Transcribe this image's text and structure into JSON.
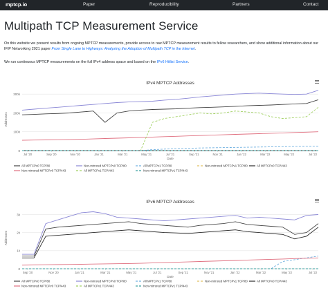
{
  "navbar": {
    "brand": "mptcp.io",
    "links": [
      "Paper",
      "Reproducibility",
      "Partners",
      "Contact"
    ]
  },
  "page": {
    "title": "Multipath TCP Measurement Service",
    "intro_part1": "On this website we present results from ongoing MPTCP measurements, provide access to raw MPTCP measurement results to fellow researchers, and show additional information about our IFIP Networking 2021 paper ",
    "intro_link": "From Single Lane to Highways: Analyzing the Adoption of Multipath TCP in the Internet",
    "intro_end": ".",
    "hitlist_part1": "We run continuous MPTCP measurements on the full IPv4 address space and based on the ",
    "hitlist_link": "IPv6 Hitlist Service",
    "hitlist_end": "."
  },
  "colors": {
    "mptcpv0_tcp80": "#444444",
    "nonmirrored_v0_tcp80": "#8a87d6",
    "mptcpv1_tcp80": "#6fb0e0",
    "nonmirrored_v1_tcp80": "#e0c060",
    "mptcpv0_tcp443": "#2a2a2a",
    "nonmirrored_v0_tcp443": "#e07080",
    "mptcpv0_tcp443_b": "#a0d060",
    "mptcpv1_tcp443": "#3aa0a0",
    "nonmirrored_v1_tcp443": "#d04060"
  },
  "chart_data": [
    {
      "type": "line",
      "title": "IPv4 MPTCP Addresses",
      "xlabel": "Date",
      "ylabel": "Addresses",
      "x_ticks": [
        "Jul '20",
        "Sep '20",
        "Nov '20",
        "Jan '21",
        "Mar '21",
        "May '21",
        "Jul '21",
        "Sep '21",
        "Nov '21",
        "Jan '22",
        "Mar '22",
        "May '22",
        "Jul '22"
      ],
      "y_ticks": [
        "0",
        "100k",
        "200k",
        "300k"
      ],
      "ylim": [
        0,
        330000
      ],
      "grid": true,
      "legend": "bottom",
      "x": [
        "2020-07",
        "2020-08",
        "2020-09",
        "2020-10",
        "2020-11",
        "2020-12",
        "2021-01",
        "2021-02",
        "2021-03",
        "2021-04",
        "2021-05",
        "2021-06",
        "2021-07",
        "2021-08",
        "2021-09",
        "2021-10",
        "2021-11",
        "2021-12",
        "2022-01",
        "2022-02",
        "2022-03",
        "2022-04",
        "2022-05",
        "2022-06",
        "2022-07",
        "2022-08"
      ],
      "series": [
        {
          "name": "All MPTCPv0 TCP/80",
          "color": "#444444",
          "values": [
            190000,
            192000,
            195000,
            197000,
            200000,
            205000,
            210000,
            150000,
            200000,
            210000,
            215000,
            218000,
            220000,
            222000,
            225000,
            228000,
            230000,
            232000,
            235000,
            238000,
            240000,
            242000,
            245000,
            248000,
            250000,
            270000
          ]
        },
        {
          "name": "Non-mirrored MPTCPv0 TCP/80",
          "color": "#8a87d6",
          "values": [
            215000,
            220000,
            225000,
            230000,
            235000,
            240000,
            245000,
            250000,
            255000,
            258000,
            260000,
            262000,
            268000,
            272000,
            278000,
            285000,
            290000,
            295000,
            300000,
            303000,
            305000,
            302000,
            300000,
            298000,
            300000,
            320000
          ]
        },
        {
          "name": "All MPTCPv1 TCP/80",
          "color": "#6fb0e0",
          "values": [
            0,
            0,
            0,
            0,
            0,
            0,
            0,
            0,
            0,
            0,
            0,
            5000,
            8000,
            10000,
            12000,
            14000,
            15000,
            16000,
            17000,
            18000,
            19000,
            20000,
            21000,
            22000,
            23000,
            24000
          ]
        },
        {
          "name": "Non-mirrored MPTCPv1 TCP/80",
          "color": "#e0c060",
          "values": [
            0,
            0,
            0,
            0,
            0,
            0,
            0,
            0,
            0,
            0,
            0,
            0,
            0,
            0,
            0,
            0,
            0,
            0,
            0,
            0,
            0,
            0,
            0,
            0,
            0,
            0
          ]
        },
        {
          "name": "All MPTCPv0 TCP/443",
          "color": "#2a2a2a",
          "values": [
            0,
            0,
            0,
            0,
            0,
            0,
            0,
            0,
            0,
            0,
            0,
            0,
            0,
            0,
            0,
            0,
            0,
            0,
            0,
            0,
            0,
            0,
            0,
            0,
            0,
            0
          ]
        },
        {
          "name": "Non-mirrored MPTCPv0 TCP/443",
          "color": "#e07080",
          "values": [
            55000,
            56000,
            57000,
            58000,
            59000,
            60000,
            62000,
            64000,
            66000,
            68000,
            70000,
            72000,
            74000,
            76000,
            78000,
            80000,
            82000,
            84000,
            86000,
            88000,
            90000,
            92000,
            94000,
            96000,
            98000,
            100000
          ]
        },
        {
          "name": "All MPTCPv1 TCP/443",
          "color": "#a0d060",
          "values": [
            0,
            0,
            0,
            0,
            0,
            0,
            0,
            0,
            0,
            0,
            0,
            150000,
            170000,
            180000,
            190000,
            200000,
            195000,
            200000,
            210000,
            205000,
            200000,
            180000,
            170000,
            175000,
            180000,
            230000
          ]
        },
        {
          "name": "Non-mirrored MPTCPv1 TCP/443",
          "color": "#3aa0a0",
          "values": [
            0,
            0,
            0,
            0,
            0,
            0,
            0,
            0,
            0,
            0,
            0,
            0,
            0,
            0,
            0,
            0,
            0,
            0,
            0,
            0,
            0,
            0,
            0,
            0,
            0,
            0
          ]
        }
      ]
    },
    {
      "type": "line",
      "title": "IPv6 MPTCP Addresses",
      "xlabel": "Date",
      "ylabel": "Addresses",
      "x_ticks": [
        "Sep '20",
        "Nov '20",
        "Jan '21",
        "Mar '21",
        "May '21",
        "Jul '21",
        "Sep '21",
        "Nov '21",
        "Jan '22",
        "Mar '22",
        "May '22",
        "Jul '22"
      ],
      "y_ticks": [
        "0",
        "1k",
        "2k",
        "3k"
      ],
      "ylim": [
        0,
        3400
      ],
      "grid": true,
      "legend": "bottom",
      "x": [
        "2020-07",
        "2020-08",
        "2020-09",
        "2020-10",
        "2020-11",
        "2020-12",
        "2021-01",
        "2021-02",
        "2021-03",
        "2021-04",
        "2021-05",
        "2021-06",
        "2021-07",
        "2021-08",
        "2021-09",
        "2021-10",
        "2021-11",
        "2021-12",
        "2022-01",
        "2022-02",
        "2022-03",
        "2022-04",
        "2022-05",
        "2022-06",
        "2022-07",
        "2022-08"
      ],
      "series": [
        {
          "name": "All MPTCPv0 TCP/80",
          "color": "#444444",
          "values": [
            700,
            700,
            2200,
            2300,
            2350,
            2400,
            2450,
            2500,
            2550,
            2600,
            2500,
            2450,
            2400,
            2350,
            2300,
            2400,
            2450,
            2500,
            2600,
            2450,
            2400,
            2350,
            2300,
            1900,
            2000,
            2500
          ]
        },
        {
          "name": "Non-mirrored MPTCPv0 TCP/80",
          "color": "#8a87d6",
          "values": [
            800,
            800,
            2500,
            2700,
            2900,
            3100,
            3150,
            3050,
            2850,
            2800,
            2750,
            2700,
            2650,
            2700,
            2750,
            2800,
            2850,
            2900,
            2950,
            2800,
            2850,
            2800,
            2750,
            2700,
            2950,
            3000
          ]
        },
        {
          "name": "All MPTCPv1 TCP/80",
          "color": "#6fb0e0",
          "values": [
            0,
            0,
            0,
            0,
            0,
            0,
            0,
            0,
            0,
            0,
            0,
            0,
            0,
            0,
            0,
            0,
            0,
            0,
            0,
            0,
            0,
            0,
            400,
            500,
            600,
            700
          ]
        },
        {
          "name": "Non-mirrored MPTCPv1 TCP/80",
          "color": "#e0c060",
          "values": [
            0,
            0,
            0,
            0,
            0,
            0,
            0,
            0,
            0,
            0,
            0,
            0,
            0,
            0,
            0,
            0,
            0,
            0,
            0,
            0,
            0,
            0,
            0,
            0,
            0,
            0
          ]
        },
        {
          "name": "All MPTCPv0 TCP/443",
          "color": "#2a2a2a",
          "values": [
            600,
            600,
            1800,
            1850,
            1900,
            1950,
            2000,
            2050,
            2100,
            2150,
            2100,
            2050,
            2000,
            1980,
            1950,
            2000,
            2050,
            2100,
            2150,
            2050,
            2000,
            1950,
            1900,
            1650,
            1800,
            2300
          ]
        },
        {
          "name": "Non-mirrored MPTCPv0 TCP/443",
          "color": "#e07080",
          "values": [
            200,
            210,
            220,
            230,
            240,
            250,
            260,
            270,
            280,
            290,
            300,
            320,
            340,
            360,
            380,
            400,
            420,
            440,
            460,
            480,
            500,
            520,
            540,
            560,
            580,
            600
          ]
        },
        {
          "name": "All MPTCPv1 TCP/443",
          "color": "#a0d060",
          "values": [
            0,
            0,
            0,
            0,
            0,
            0,
            0,
            0,
            0,
            0,
            0,
            0,
            0,
            0,
            0,
            0,
            0,
            0,
            0,
            0,
            0,
            0,
            0,
            0,
            0,
            0
          ]
        },
        {
          "name": "Non-mirrored MPTCPv1 TCP/443",
          "color": "#3aa0a0",
          "values": [
            0,
            0,
            0,
            0,
            0,
            0,
            0,
            0,
            0,
            0,
            0,
            0,
            0,
            0,
            0,
            0,
            0,
            0,
            0,
            0,
            0,
            0,
            0,
            0,
            0,
            0
          ]
        }
      ]
    }
  ],
  "legends": [
    [
      {
        "label": "All MPTCPv0 TCP/80",
        "color": "#444444",
        "dash": ""
      },
      {
        "label": "Non-mirrored MPTCPv0 TCP/80",
        "color": "#8a87d6",
        "dash": ""
      },
      {
        "label": "All MPTCPv1 TCP/80",
        "color": "#6fb0e0",
        "dash": "3,2"
      },
      {
        "label": "Non-mirrored MPTCPv1 TCP/80",
        "color": "#e0c060",
        "dash": "3,2"
      },
      {
        "label": "All MPTCPv0 TCP/443",
        "color": "#2a2a2a",
        "dash": ""
      },
      {
        "label": "Non-mirrored MPTCPv0 TCP/443",
        "color": "#e07080",
        "dash": ""
      },
      {
        "label": "All MPTCPv1 TCP/443",
        "color": "#a0d060",
        "dash": "3,2"
      },
      {
        "label": "Non-mirrored MPTCPv1 TCP/443",
        "color": "#3aa0a0",
        "dash": "3,2"
      }
    ],
    [
      {
        "label": "All MPTCPv0 TCP/80",
        "color": "#444444",
        "dash": ""
      },
      {
        "label": "Non-mirrored MPTCPv0 TCP/80",
        "color": "#8a87d6",
        "dash": ""
      },
      {
        "label": "All MPTCPv1 TCP/80",
        "color": "#6fb0e0",
        "dash": "3,2"
      },
      {
        "label": "Non-mirrored MPTCPv1 TCP/80",
        "color": "#e0c060",
        "dash": "3,2"
      },
      {
        "label": "All MPTCPv0 TCP/443",
        "color": "#2a2a2a",
        "dash": ""
      },
      {
        "label": "Non-mirrored MPTCPv0 TCP/443",
        "color": "#e07080",
        "dash": ""
      },
      {
        "label": "All MPTCPv1 TCP/443",
        "color": "#a0d060",
        "dash": "3,2"
      },
      {
        "label": "Non-mirrored MPTCPv1 TCP/443",
        "color": "#3aa0a0",
        "dash": "3,2"
      }
    ]
  ],
  "icons": {
    "menu": "hamburger-icon"
  }
}
